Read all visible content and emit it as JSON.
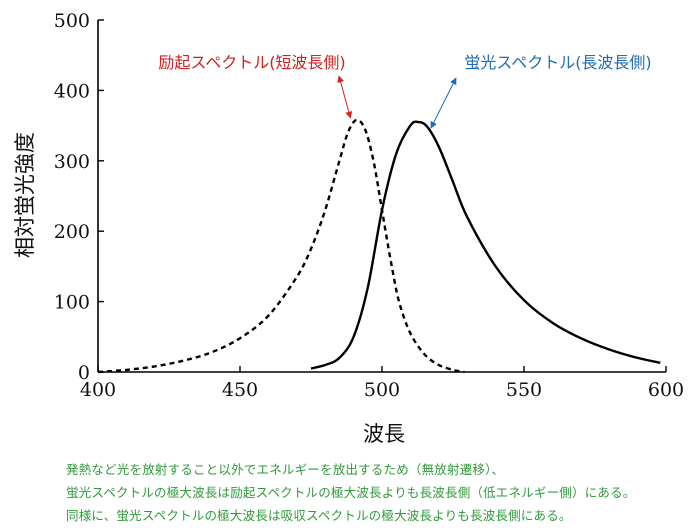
{
  "chart_data": {
    "type": "line",
    "xlabel": "波長",
    "ylabel": "相対蛍光強度",
    "xlim": [
      400,
      600
    ],
    "ylim": [
      0,
      500
    ],
    "x_ticks": [
      400,
      450,
      500,
      550,
      600
    ],
    "y_ticks": [
      0,
      100,
      200,
      300,
      400,
      500
    ],
    "grid": false,
    "series": [
      {
        "name": "励起スペクトル(短波長側)",
        "style": "dashed",
        "color": "#000000",
        "label_color": "#d62020",
        "x": [
          400,
          410,
          420,
          430,
          440,
          450,
          460,
          470,
          475,
          480,
          485,
          488,
          491,
          494,
          497,
          500,
          503,
          506,
          510,
          515,
          520,
          525,
          529
        ],
        "y": [
          0,
          3,
          8,
          16,
          28,
          48,
          80,
          135,
          175,
          230,
          300,
          340,
          358,
          345,
          300,
          230,
          160,
          100,
          55,
          25,
          10,
          3,
          0
        ]
      },
      {
        "name": "蛍光スペクトル(長波長側)",
        "style": "solid",
        "color": "#000000",
        "label_color": "#1f6db5",
        "x": [
          475,
          480,
          485,
          490,
          495,
          500,
          505,
          510,
          513,
          516,
          520,
          525,
          530,
          540,
          550,
          560,
          570,
          580,
          590,
          598
        ],
        "y": [
          5,
          10,
          20,
          50,
          120,
          230,
          310,
          350,
          355,
          348,
          320,
          270,
          220,
          150,
          102,
          70,
          48,
          32,
          20,
          13
        ]
      }
    ]
  },
  "caption": {
    "line1": "発熱など光を放射すること以外でエネルギーを放出するため（無放射遷移）、",
    "line2": "蛍光スペクトルの極大波長は励起スペクトルの極大波長よりも長波長側（低エネルギー側）にある。",
    "line3": "同様に、蛍光スペクトルの極大波長は吸収スペクトルの極大波長よりも長波長側にある。"
  }
}
